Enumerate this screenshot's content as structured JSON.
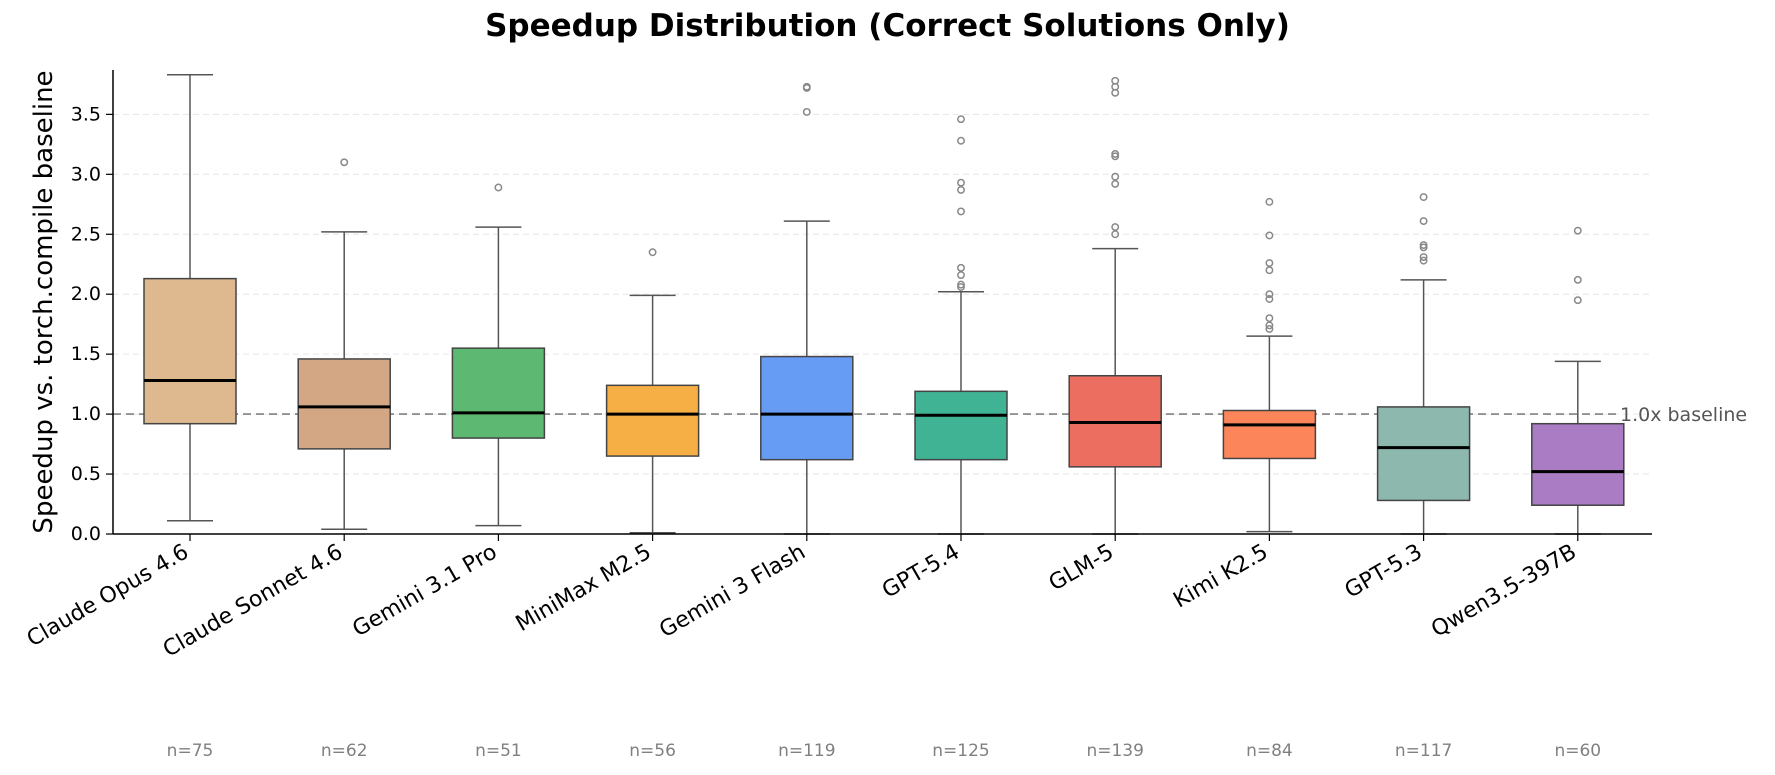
{
  "chart_data": {
    "type": "box",
    "title": "Speedup Distribution (Correct Solutions Only)",
    "xlabel": "",
    "ylabel": "Speedup vs. torch.compile baseline",
    "ylim": [
      0,
      3.87
    ],
    "yticks": [
      "0.0",
      "0.5",
      "1.0",
      "1.5",
      "2.0",
      "2.5",
      "3.0",
      "3.5"
    ],
    "grid": "horizontal dashed",
    "reference_line": {
      "y": 1.0,
      "label": "1.0x baseline"
    },
    "categories": [
      "Claude Opus 4.6",
      "Claude Sonnet 4.6",
      "Gemini 3.1 Pro",
      "MiniMax M2.5",
      "Gemini 3 Flash",
      "GPT-5.4",
      "GLM-5",
      "Kimi K2.5",
      "GPT-5.3",
      "Qwen3.5-397B"
    ],
    "boxes": [
      {
        "label": "Claude Opus 4.6",
        "n_label": "n=75",
        "color": "#DEB88F",
        "whisker_low": 0.11,
        "q1": 0.92,
        "median": 1.28,
        "q3": 2.13,
        "whisker_high": 3.83,
        "outliers": []
      },
      {
        "label": "Claude Sonnet 4.6",
        "n_label": "n=62",
        "color": "#D3A784",
        "whisker_low": 0.04,
        "q1": 0.71,
        "median": 1.06,
        "q3": 1.46,
        "whisker_high": 2.52,
        "outliers": [
          3.1
        ]
      },
      {
        "label": "Gemini 3.1 Pro",
        "n_label": "n=51",
        "color": "#5DB872",
        "whisker_low": 0.07,
        "q1": 0.8,
        "median": 1.01,
        "q3": 1.55,
        "whisker_high": 2.56,
        "outliers": [
          2.89
        ]
      },
      {
        "label": "MiniMax M2.5",
        "n_label": "n=56",
        "color": "#F6AF44",
        "whisker_low": 0.01,
        "q1": 0.65,
        "median": 1.0,
        "q3": 1.24,
        "whisker_high": 1.99,
        "outliers": [
          2.35
        ]
      },
      {
        "label": "Gemini 3 Flash",
        "n_label": "n=119",
        "color": "#679CF4",
        "whisker_low": 0.0,
        "q1": 0.62,
        "median": 1.0,
        "q3": 1.48,
        "whisker_high": 2.61,
        "outliers": [
          3.52,
          3.72,
          3.73
        ]
      },
      {
        "label": "GPT-5.4",
        "n_label": "n=125",
        "color": "#40B394",
        "whisker_low": 0.0,
        "q1": 0.62,
        "median": 0.99,
        "q3": 1.19,
        "whisker_high": 2.02,
        "outliers": [
          2.06,
          2.08,
          2.16,
          2.22,
          2.69,
          2.87,
          2.93,
          3.28,
          3.46
        ]
      },
      {
        "label": "GLM-5",
        "n_label": "n=139",
        "color": "#EC6E60",
        "whisker_low": 0.0,
        "q1": 0.56,
        "median": 0.93,
        "q3": 1.32,
        "whisker_high": 2.38,
        "outliers": [
          2.5,
          2.56,
          2.92,
          2.98,
          3.15,
          3.17,
          3.68,
          3.73,
          3.78
        ]
      },
      {
        "label": "Kimi K2.5",
        "n_label": "n=84",
        "color": "#FC8659",
        "whisker_low": 0.02,
        "q1": 0.63,
        "median": 0.91,
        "q3": 1.03,
        "whisker_high": 1.65,
        "outliers": [
          1.71,
          1.74,
          1.8,
          1.96,
          2.0,
          2.2,
          2.26,
          2.49,
          2.77
        ]
      },
      {
        "label": "GPT-5.3",
        "n_label": "n=117",
        "color": "#8DB8AE",
        "whisker_low": 0.0,
        "q1": 0.28,
        "median": 0.72,
        "q3": 1.06,
        "whisker_high": 2.12,
        "outliers": [
          2.28,
          2.31,
          2.39,
          2.41,
          2.61,
          2.81
        ]
      },
      {
        "label": "Qwen3.5-397B",
        "n_label": "n=60",
        "color": "#A97CC4",
        "whisker_low": 0.0,
        "q1": 0.24,
        "median": 0.52,
        "q3": 0.92,
        "whisker_high": 1.44,
        "outliers": [
          1.95,
          2.12,
          2.53
        ]
      }
    ]
  }
}
